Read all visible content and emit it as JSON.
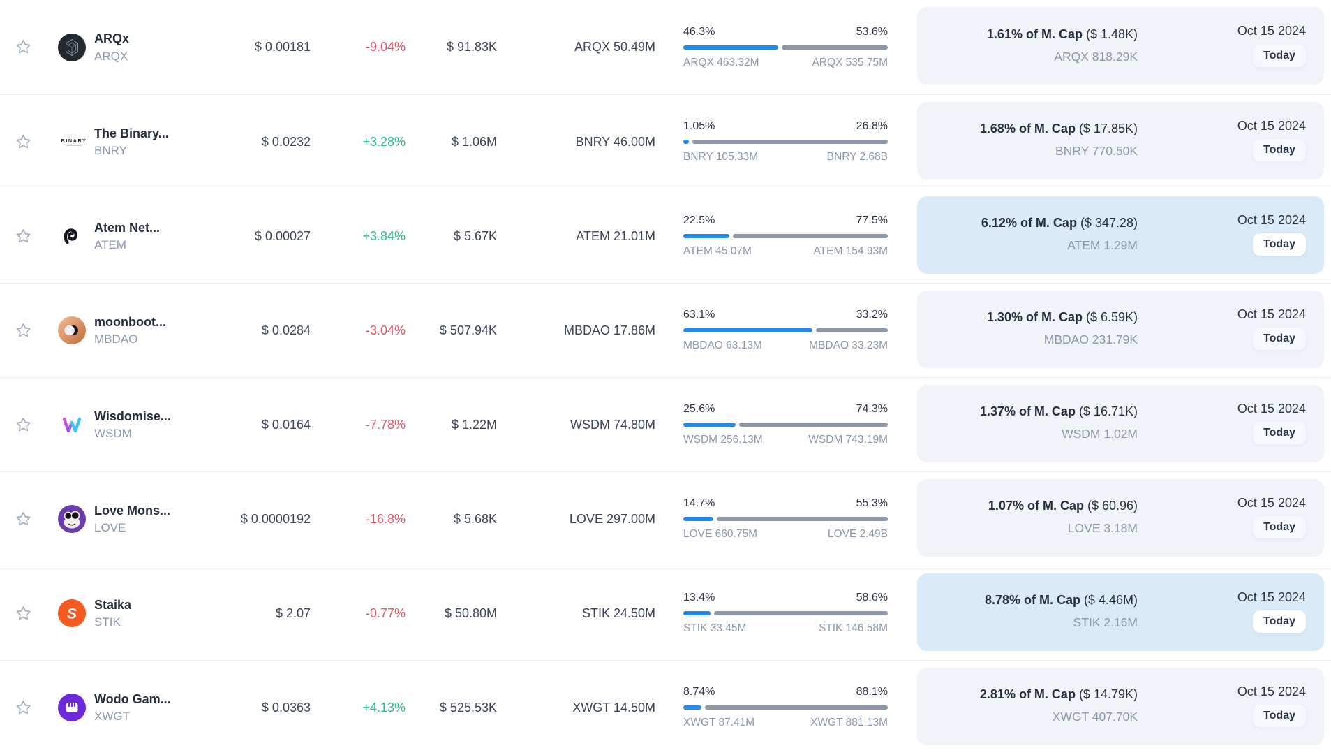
{
  "colors": {
    "up_green": "#2cbc8c",
    "down_red": "#e25766",
    "bar_blue": "#2589e8",
    "bar_gray": "#8d97a6",
    "panel_bg": "#f0f4f9",
    "panel_highlight_bg": "#dbeaf8",
    "divider": "#e9edf3"
  },
  "icons": {
    "star": "watchlist-star-icon"
  },
  "table": {
    "rows": [
      {
        "coin": {
          "name": "ARQx",
          "symbol": "ARQX",
          "logo": "arqx",
          "logo_text": ""
        },
        "price": "$ 0.00181",
        "change": {
          "text": "-9.04%",
          "direction": "down"
        },
        "volume": "$ 91.83K",
        "supply": "ARQX 50.49M",
        "progress": {
          "left_pct": 46.3,
          "left_label": "46.3%",
          "right_label": "53.6%",
          "left_amount": "ARQX 463.32M",
          "right_amount": "ARQX 535.75M"
        },
        "next_unlock": {
          "mcap_pct": "1.61% of M. Cap",
          "usd": "($ 1.48K)",
          "amount": "ARQX 818.29K",
          "date": "Oct 15 2024",
          "badge": "Today",
          "highlighted": false
        }
      },
      {
        "coin": {
          "name": "The Binary...",
          "symbol": "BNRY",
          "logo": "bnry",
          "logo_text": "BINARY"
        },
        "price": "$ 0.0232",
        "change": {
          "text": "+3.28%",
          "direction": "up"
        },
        "volume": "$ 1.06M",
        "supply": "BNRY 46.00M",
        "progress": {
          "left_pct": 1.05,
          "left_label": "1.05%",
          "right_label": "26.8%",
          "left_amount": "BNRY 105.33M",
          "right_amount": "BNRY 2.68B"
        },
        "next_unlock": {
          "mcap_pct": "1.68% of M. Cap",
          "usd": "($ 17.85K)",
          "amount": "BNRY 770.50K",
          "date": "Oct 15 2024",
          "badge": "Today",
          "highlighted": false
        }
      },
      {
        "coin": {
          "name": "Atem Net...",
          "symbol": "ATEM",
          "logo": "atem",
          "logo_text": ""
        },
        "price": "$ 0.00027",
        "change": {
          "text": "+3.84%",
          "direction": "up"
        },
        "volume": "$ 5.67K",
        "supply": "ATEM 21.01M",
        "progress": {
          "left_pct": 22.5,
          "left_label": "22.5%",
          "right_label": "77.5%",
          "left_amount": "ATEM 45.07M",
          "right_amount": "ATEM 154.93M"
        },
        "next_unlock": {
          "mcap_pct": "6.12% of M. Cap",
          "usd": "($ 347.28)",
          "amount": "ATEM 1.29M",
          "date": "Oct 15 2024",
          "badge": "Today",
          "highlighted": true
        }
      },
      {
        "coin": {
          "name": "moonboot...",
          "symbol": "MBDAO",
          "logo": "mbdao",
          "logo_text": ""
        },
        "price": "$ 0.0284",
        "change": {
          "text": "-3.04%",
          "direction": "down"
        },
        "volume": "$ 507.94K",
        "supply": "MBDAO 17.86M",
        "progress": {
          "left_pct": 63.1,
          "left_label": "63.1%",
          "right_label": "33.2%",
          "left_amount": "MBDAO 63.13M",
          "right_amount": "MBDAO 33.23M"
        },
        "next_unlock": {
          "mcap_pct": "1.30% of M. Cap",
          "usd": "($ 6.59K)",
          "amount": "MBDAO 231.79K",
          "date": "Oct 15 2024",
          "badge": "Today",
          "highlighted": false
        }
      },
      {
        "coin": {
          "name": "Wisdomise...",
          "symbol": "WSDM",
          "logo": "wsdm",
          "logo_text": ""
        },
        "price": "$ 0.0164",
        "change": {
          "text": "-7.78%",
          "direction": "down"
        },
        "volume": "$ 1.22M",
        "supply": "WSDM 74.80M",
        "progress": {
          "left_pct": 25.6,
          "left_label": "25.6%",
          "right_label": "74.3%",
          "left_amount": "WSDM 256.13M",
          "right_amount": "WSDM 743.19M"
        },
        "next_unlock": {
          "mcap_pct": "1.37% of M. Cap",
          "usd": "($ 16.71K)",
          "amount": "WSDM 1.02M",
          "date": "Oct 15 2024",
          "badge": "Today",
          "highlighted": false
        }
      },
      {
        "coin": {
          "name": "Love Mons...",
          "symbol": "LOVE",
          "logo": "love",
          "logo_text": ""
        },
        "price": "$ 0.0000192",
        "change": {
          "text": "-16.8%",
          "direction": "down"
        },
        "volume": "$ 5.68K",
        "supply": "LOVE 297.00M",
        "progress": {
          "left_pct": 14.7,
          "left_label": "14.7%",
          "right_label": "55.3%",
          "left_amount": "LOVE 660.75M",
          "right_amount": "LOVE 2.49B"
        },
        "next_unlock": {
          "mcap_pct": "1.07% of M. Cap",
          "usd": "($ 60.96)",
          "amount": "LOVE 3.18M",
          "date": "Oct 15 2024",
          "badge": "Today",
          "highlighted": false
        }
      },
      {
        "coin": {
          "name": "Staika",
          "symbol": "STIK",
          "logo": "stik",
          "logo_text": "S"
        },
        "price": "$ 2.07",
        "change": {
          "text": "-0.77%",
          "direction": "down"
        },
        "volume": "$ 50.80M",
        "supply": "STIK 24.50M",
        "progress": {
          "left_pct": 13.4,
          "left_label": "13.4%",
          "right_label": "58.6%",
          "left_amount": "STIK 33.45M",
          "right_amount": "STIK 146.58M"
        },
        "next_unlock": {
          "mcap_pct": "8.78% of M. Cap",
          "usd": "($ 4.46M)",
          "amount": "STIK 2.16M",
          "date": "Oct 15 2024",
          "badge": "Today",
          "highlighted": true
        }
      },
      {
        "coin": {
          "name": "Wodo Gam...",
          "symbol": "XWGT",
          "logo": "xwgt",
          "logo_text": ""
        },
        "price": "$ 0.0363",
        "change": {
          "text": "+4.13%",
          "direction": "up"
        },
        "volume": "$ 525.53K",
        "supply": "XWGT 14.50M",
        "progress": {
          "left_pct": 8.74,
          "left_label": "8.74%",
          "right_label": "88.1%",
          "left_amount": "XWGT 87.41M",
          "right_amount": "XWGT 881.13M"
        },
        "next_unlock": {
          "mcap_pct": "2.81% of M. Cap",
          "usd": "($ 14.79K)",
          "amount": "XWGT 407.70K",
          "date": "Oct 15 2024",
          "badge": "Today",
          "highlighted": false
        }
      }
    ]
  }
}
